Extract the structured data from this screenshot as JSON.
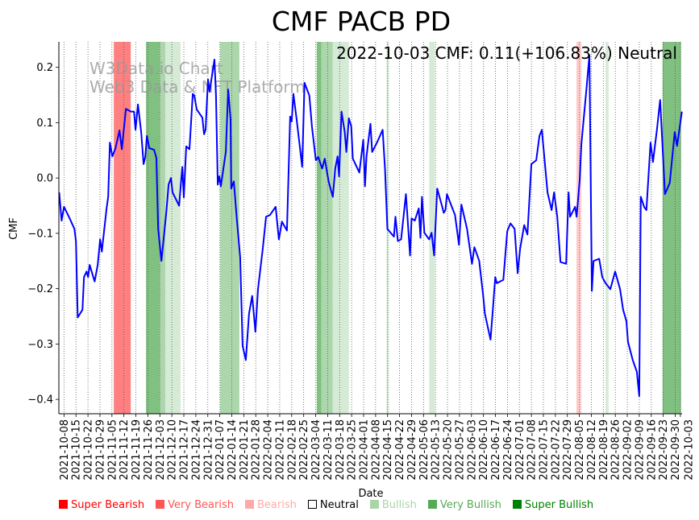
{
  "chart_data": {
    "type": "line",
    "title": "CMF PACB PD",
    "xlabel": "Date",
    "ylabel": "CMF",
    "annotation": "2022-10-03 CMF: 0.11(+106.83%) Neutral",
    "watermark": [
      "W3Data.io Chart",
      "Web3 Data & NFT Platform"
    ],
    "x_origin": "2021-10-08",
    "x_unit": "days since x_origin",
    "xlim": [
      -3,
      361
    ],
    "ylim": [
      -0.426,
      0.246
    ],
    "yticks": [
      -0.4,
      -0.3,
      -0.2,
      -0.1,
      0.0,
      0.1,
      0.2
    ],
    "ytick_labels": [
      "−0.4",
      "−0.3",
      "−0.2",
      "−0.1",
      "0.0",
      "0.1",
      "0.2"
    ],
    "xtick_labels": [
      "2021-10-08",
      "2021-10-15",
      "2021-10-22",
      "2021-10-29",
      "2021-11-05",
      "2021-11-12",
      "2021-11-19",
      "2021-11-26",
      "2021-12-03",
      "2021-12-10",
      "2021-12-17",
      "2021-12-24",
      "2021-12-31",
      "2022-01-07",
      "2022-01-14",
      "2022-01-21",
      "2022-01-28",
      "2022-02-04",
      "2022-02-11",
      "2022-02-18",
      "2022-02-25",
      "2022-03-04",
      "2022-03-11",
      "2022-03-18",
      "2022-03-25",
      "2022-04-01",
      "2022-04-08",
      "2022-04-15",
      "2022-04-22",
      "2022-04-29",
      "2022-05-06",
      "2022-05-13",
      "2022-05-20",
      "2022-05-27",
      "2022-06-03",
      "2022-06-10",
      "2022-06-17",
      "2022-06-24",
      "2022-07-01",
      "2022-07-08",
      "2022-07-15",
      "2022-07-22",
      "2022-07-29",
      "2022-08-05",
      "2022-08-12",
      "2022-08-19",
      "2022-08-26",
      "2022-09-02",
      "2022-09-09",
      "2022-09-16",
      "2022-09-23",
      "2022-09-30",
      "2022-10-03"
    ],
    "grid": "vertical dotted",
    "series": [
      {
        "name": "CMF",
        "color": "#0000ff",
        "points": [
          [
            -2.8,
            -0.026
          ],
          [
            -1.4,
            -0.077
          ],
          [
            0,
            -0.052
          ],
          [
            3.3,
            -0.073
          ],
          [
            6.1,
            -0.092
          ],
          [
            7,
            -0.114
          ],
          [
            8,
            -0.252
          ],
          [
            10.8,
            -0.238
          ],
          [
            11.7,
            -0.179
          ],
          [
            13.2,
            -0.169
          ],
          [
            14.1,
            -0.179
          ],
          [
            15,
            -0.157
          ],
          [
            17.9,
            -0.187
          ],
          [
            19.7,
            -0.157
          ],
          [
            21.1,
            -0.111
          ],
          [
            22.1,
            -0.133
          ],
          [
            24.9,
            -0.055
          ],
          [
            25.8,
            -0.034
          ],
          [
            26.8,
            0.064
          ],
          [
            28.2,
            0.039
          ],
          [
            30.1,
            0.054
          ],
          [
            32.4,
            0.086
          ],
          [
            33.8,
            0.052
          ],
          [
            36.2,
            0.125
          ],
          [
            39,
            0.12
          ],
          [
            40.9,
            0.12
          ],
          [
            41.8,
            0.087
          ],
          [
            43.2,
            0.133
          ],
          [
            45.1,
            0.083
          ],
          [
            46.5,
            0.025
          ],
          [
            47.5,
            0.038
          ],
          [
            48.4,
            0.076
          ],
          [
            49.8,
            0.054
          ],
          [
            52.6,
            0.051
          ],
          [
            54,
            0.036
          ],
          [
            55,
            -0.092
          ],
          [
            56.9,
            -0.15
          ],
          [
            59.7,
            -0.063
          ],
          [
            61.1,
            -0.012
          ],
          [
            62.5,
            0
          ],
          [
            63.4,
            -0.026
          ],
          [
            65.8,
            -0.041
          ],
          [
            67.2,
            -0.05
          ],
          [
            69.1,
            0.02
          ],
          [
            70,
            -0.035
          ],
          [
            71.4,
            0.057
          ],
          [
            73.3,
            0.052
          ],
          [
            75.2,
            0.152
          ],
          [
            76.1,
            0.149
          ],
          [
            77.5,
            0.124
          ],
          [
            80.8,
            0.109
          ],
          [
            81.8,
            0.079
          ],
          [
            82.7,
            0.087
          ],
          [
            84.1,
            0.178
          ],
          [
            85,
            0.156
          ],
          [
            87.9,
            0.214
          ],
          [
            88.8,
            0.149
          ],
          [
            89.8,
            -0.012
          ],
          [
            90.7,
            0.003
          ],
          [
            91.6,
            -0.015
          ],
          [
            94.5,
            0.047
          ],
          [
            95.9,
            0.16
          ],
          [
            97.3,
            0.105
          ],
          [
            97.7,
            -0.019
          ],
          [
            99.2,
            -0.006
          ],
          [
            101,
            -0.077
          ],
          [
            102.9,
            -0.143
          ],
          [
            104.3,
            -0.303
          ],
          [
            106.2,
            -0.329
          ],
          [
            108.1,
            -0.245
          ],
          [
            109.9,
            -0.213
          ],
          [
            111.8,
            -0.278
          ],
          [
            113.3,
            -0.201
          ],
          [
            116.1,
            -0.128
          ],
          [
            118,
            -0.07
          ],
          [
            120.3,
            -0.067
          ],
          [
            123.6,
            -0.052
          ],
          [
            125.5,
            -0.111
          ],
          [
            127.3,
            -0.079
          ],
          [
            130.2,
            -0.095
          ],
          [
            132.1,
            0.111
          ],
          [
            133,
            0.102
          ],
          [
            134,
            0.152
          ],
          [
            135.9,
            0.105
          ],
          [
            139.1,
            0.02
          ],
          [
            140.5,
            0.172
          ],
          [
            143.3,
            0.149
          ],
          [
            144.8,
            0.093
          ],
          [
            147.1,
            0.032
          ],
          [
            148.5,
            0.038
          ],
          [
            150.8,
            0.017
          ],
          [
            152.3,
            0.035
          ],
          [
            154.6,
            -0.007
          ],
          [
            157,
            -0.034
          ],
          [
            158.4,
            0.017
          ],
          [
            159.8,
            0.039
          ],
          [
            160.7,
            0.003
          ],
          [
            162.1,
            0.12
          ],
          [
            164,
            0.083
          ],
          [
            164.9,
            0.047
          ],
          [
            166.4,
            0.108
          ],
          [
            167.8,
            0.093
          ],
          [
            168.7,
            0.035
          ],
          [
            172.5,
            0.01
          ],
          [
            174.8,
            0.069
          ],
          [
            175.8,
            -0.015
          ],
          [
            176.7,
            0.039
          ],
          [
            179,
            0.098
          ],
          [
            180,
            0.047
          ],
          [
            182.8,
            0.064
          ],
          [
            186.1,
            0.087
          ],
          [
            187.5,
            0.015
          ],
          [
            188.9,
            -0.092
          ],
          [
            192.7,
            -0.106
          ],
          [
            193.6,
            -0.07
          ],
          [
            195,
            -0.114
          ],
          [
            196.9,
            -0.111
          ],
          [
            199.7,
            -0.029
          ],
          [
            202.1,
            -0.14
          ],
          [
            203,
            -0.073
          ],
          [
            204.9,
            -0.077
          ],
          [
            207.2,
            -0.055
          ],
          [
            208.2,
            -0.108
          ],
          [
            209.1,
            -0.034
          ],
          [
            210.5,
            -0.099
          ],
          [
            213.3,
            -0.111
          ],
          [
            214.7,
            -0.099
          ],
          [
            216.2,
            -0.14
          ],
          [
            218,
            -0.019
          ],
          [
            220.9,
            -0.052
          ],
          [
            221.8,
            -0.063
          ],
          [
            222.8,
            -0.058
          ],
          [
            223.7,
            -0.029
          ],
          [
            226.5,
            -0.052
          ],
          [
            228.4,
            -0.067
          ],
          [
            230.7,
            -0.121
          ],
          [
            232.1,
            -0.048
          ],
          [
            235.4,
            -0.092
          ],
          [
            238.3,
            -0.155
          ],
          [
            239.7,
            -0.125
          ],
          [
            242.5,
            -0.15
          ],
          [
            243.9,
            -0.187
          ],
          [
            244.8,
            -0.211
          ],
          [
            245.8,
            -0.245
          ],
          [
            249.1,
            -0.292
          ],
          [
            250.5,
            -0.238
          ],
          [
            251.9,
            -0.179
          ],
          [
            252.8,
            -0.19
          ],
          [
            256.6,
            -0.184
          ],
          [
            258.9,
            -0.096
          ],
          [
            260.8,
            -0.082
          ],
          [
            263.2,
            -0.092
          ],
          [
            265,
            -0.172
          ],
          [
            266.4,
            -0.128
          ],
          [
            268.8,
            -0.085
          ],
          [
            270.7,
            -0.102
          ],
          [
            273,
            0.025
          ],
          [
            275.8,
            0.032
          ],
          [
            277.7,
            0.076
          ],
          [
            279.1,
            0.087
          ],
          [
            282.4,
            -0.026
          ],
          [
            284.8,
            -0.058
          ],
          [
            286.2,
            -0.026
          ],
          [
            288.1,
            -0.07
          ],
          [
            290,
            -0.152
          ],
          [
            293.3,
            -0.155
          ],
          [
            294.7,
            -0.026
          ],
          [
            295.6,
            -0.07
          ],
          [
            298.5,
            -0.052
          ],
          [
            299.4,
            -0.07
          ],
          [
            301.2,
            -0.004
          ],
          [
            302.2,
            0.061
          ],
          [
            305,
            0.156
          ],
          [
            306.9,
            0.222
          ],
          [
            308.3,
            -0.204
          ],
          [
            309.3,
            -0.15
          ],
          [
            312.6,
            -0.146
          ],
          [
            314.4,
            -0.179
          ],
          [
            316.3,
            -0.19
          ],
          [
            319.1,
            -0.201
          ],
          [
            321.9,
            -0.169
          ],
          [
            324.8,
            -0.201
          ],
          [
            326.6,
            -0.238
          ],
          [
            328.5,
            -0.259
          ],
          [
            329.4,
            -0.296
          ],
          [
            332.2,
            -0.329
          ],
          [
            334.6,
            -0.35
          ],
          [
            336,
            -0.394
          ],
          [
            336.9,
            -0.034
          ],
          [
            338.8,
            -0.052
          ],
          [
            340.2,
            -0.058
          ],
          [
            342.6,
            0.064
          ],
          [
            344,
            0.029
          ],
          [
            346.3,
            0.087
          ],
          [
            348.2,
            0.141
          ],
          [
            351,
            -0.029
          ],
          [
            353.8,
            -0.009
          ],
          [
            356.7,
            0.083
          ],
          [
            358.1,
            0.058
          ],
          [
            360.9,
            0.12
          ]
        ]
      }
    ],
    "bands": [
      {
        "start": 29.1,
        "end": 39.0,
        "color": "#ff8080"
      },
      {
        "start": 47.9,
        "end": 55.9,
        "color": "#80c080"
      },
      {
        "start": 55.9,
        "end": 59.2,
        "color": "#acd6ac"
      },
      {
        "start": 59.2,
        "end": 68.1,
        "color": "#d6ebd6"
      },
      {
        "start": 91.2,
        "end": 102.4,
        "color": "#acd6ac"
      },
      {
        "start": 147.6,
        "end": 150.4,
        "color": "#80c080"
      },
      {
        "start": 150.4,
        "end": 157.0,
        "color": "#acd6ac"
      },
      {
        "start": 157.0,
        "end": 166.4,
        "color": "#d6ebd6"
      },
      {
        "start": 188.4,
        "end": 189.8,
        "color": "#d6ebd6"
      },
      {
        "start": 213.3,
        "end": 216.6,
        "color": "#d6ebd6"
      },
      {
        "start": 299.3,
        "end": 302.2,
        "color": "#ffcccc"
      },
      {
        "start": 316.3,
        "end": 318.1,
        "color": "#d6ebd6"
      },
      {
        "start": 349.6,
        "end": 360.4,
        "color": "#80c080"
      }
    ],
    "legend": [
      {
        "label": "Super Bearish",
        "color": "#ff0000",
        "text_color": "#ff0000"
      },
      {
        "label": "Very Bearish",
        "color": "#ff5555",
        "text_color": "#ff5555"
      },
      {
        "label": "Bearish",
        "color": "#ffaaaa",
        "text_color": "#ffaaaa"
      },
      {
        "label": "Neutral",
        "color": "#ffffff",
        "text_color": "#000000"
      },
      {
        "label": "Bullish",
        "color": "#aad5aa",
        "text_color": "#aad5aa"
      },
      {
        "label": "Very Bullish",
        "color": "#55aa55",
        "text_color": "#55aa55"
      },
      {
        "label": "Super Bullish",
        "color": "#008000",
        "text_color": "#008000"
      }
    ],
    "legend_placement": "bottom"
  }
}
